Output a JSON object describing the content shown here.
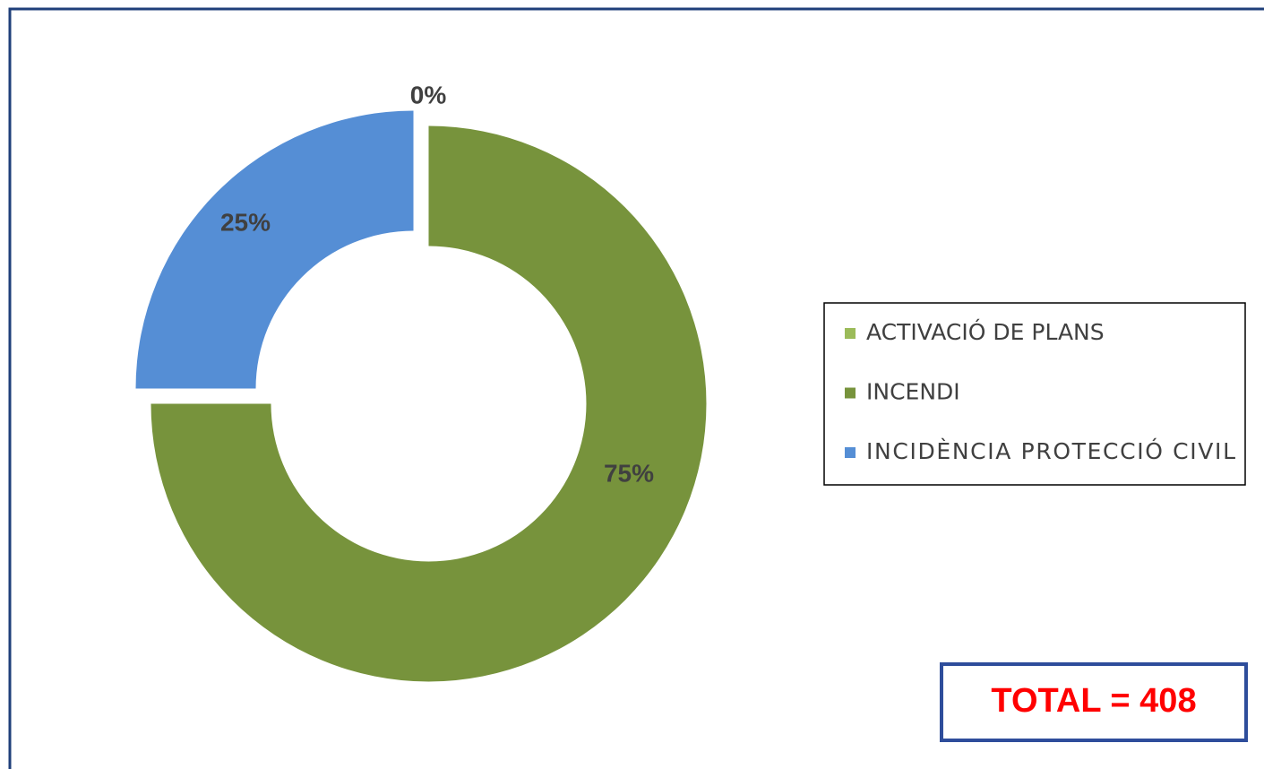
{
  "chart_data": {
    "type": "donut",
    "categories": [
      "ACTIVACIÓ DE PLANS",
      "INCENDI",
      "INCIDÈNCIA PROTECCIÓ CIVIL"
    ],
    "values": [
      0,
      75,
      25
    ],
    "value_labels": [
      "0%",
      "75%",
      "25%"
    ],
    "colors": [
      "#9bbb59",
      "#77933c",
      "#558ed5"
    ],
    "annotation": "TOTAL = 408",
    "legend": "right"
  }
}
